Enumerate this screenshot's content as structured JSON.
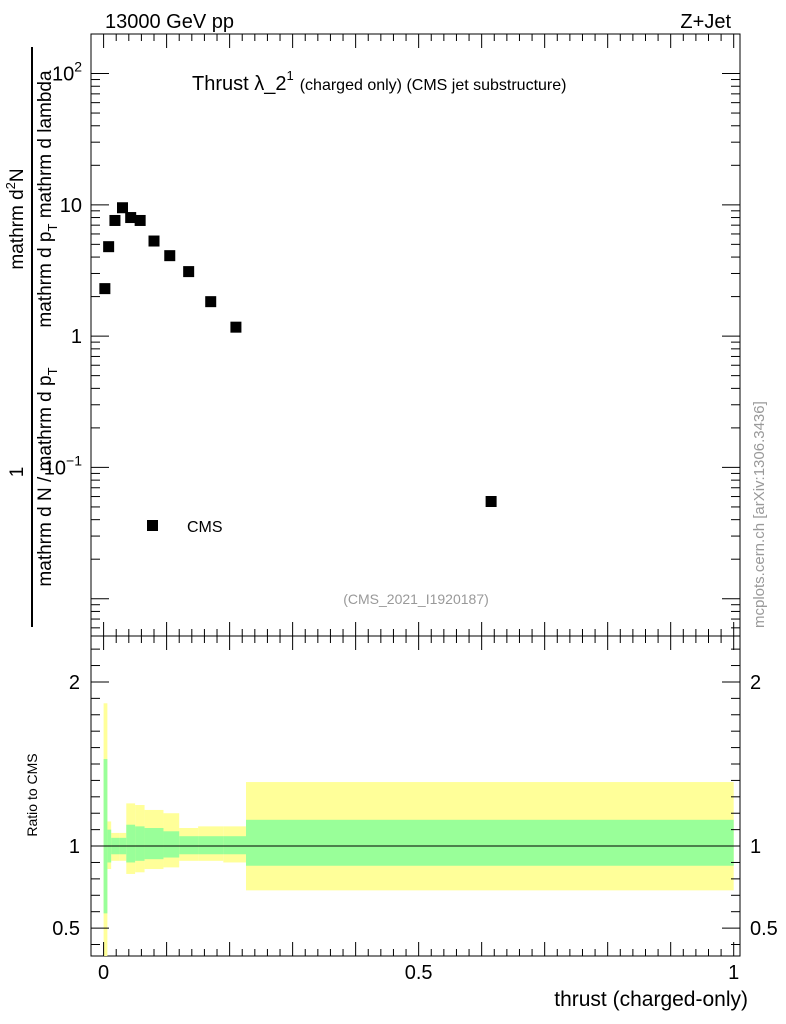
{
  "header": {
    "left": "13000 GeV pp",
    "right": "Z+Jet"
  },
  "title": {
    "main": "Thrust λ_2",
    "superscript": "1",
    "detail": "(charged only) (CMS jet substructure)"
  },
  "ylabel": {
    "numerator_main": "mathrm d",
    "numerator_sup": "2",
    "numerator_tail": "N",
    "denominator_a": "mathrm d p",
    "denominator_sub_a": "T",
    "denominator_b": " mathrm d lambda",
    "prefactor_num": "1",
    "prefactor_den_a": "mathrm d N / mathrm d p",
    "prefactor_den_sub": "T"
  },
  "side_text": "mcplots.cern.ch [arXiv:1306.3436]",
  "analysis_id": "(CMS_2021_I1920187)",
  "legend": {
    "label": "CMS"
  },
  "ratio": {
    "ylabel": "Ratio to CMS"
  },
  "xlabel": "thrust (charged-only)",
  "colors": {
    "data": "#000000",
    "band_outer": "#ffff99",
    "band_inner": "#99ff99",
    "watermark": "#999999"
  },
  "chart_data": [
    {
      "type": "scatter",
      "title": "Thrust λ_2^1 (charged only) (CMS jet substructure)",
      "xlabel": "thrust (charged-only)",
      "ylabel": "1 / (mathrm d N / mathrm d p_T) · mathrm d^2N / (mathrm d p_T mathrm d lambda)",
      "yscale": "log",
      "xlim": [
        -0.02,
        1.01
      ],
      "ylim": [
        0.0052,
        200
      ],
      "x_ticks": [
        "0",
        "0.5",
        "1"
      ],
      "y_ticks": [
        "10^-1",
        "1",
        "10",
        "10^2"
      ],
      "legend_position": "bottom-left",
      "series": [
        {
          "name": "CMS",
          "x": [
            0.002,
            0.008,
            0.018,
            0.03,
            0.043,
            0.058,
            0.08,
            0.105,
            0.135,
            0.17,
            0.21,
            0.615
          ],
          "y": [
            2.3,
            4.8,
            7.6,
            9.5,
            8.0,
            7.6,
            5.3,
            4.1,
            3.1,
            1.83,
            1.17,
            0.055
          ]
        }
      ]
    },
    {
      "type": "area",
      "ylabel": "Ratio to CMS",
      "xlabel": "thrust (charged-only)",
      "xlim": [
        -0.02,
        1.01
      ],
      "ylim": [
        0.33,
        2.28
      ],
      "y_ticks": [
        "0.5",
        "1",
        "2"
      ],
      "reference_line": 1,
      "bins": [
        {
          "x0": 0.0,
          "x1": 0.006,
          "inner": [
            0.59,
            1.53
          ],
          "outer": [
            0.33,
            1.87
          ]
        },
        {
          "x0": 0.006,
          "x1": 0.012,
          "inner": [
            0.9,
            1.1
          ],
          "outer": [
            0.86,
            1.15
          ]
        },
        {
          "x0": 0.012,
          "x1": 0.025,
          "inner": [
            0.95,
            1.05
          ],
          "outer": [
            0.91,
            1.08
          ]
        },
        {
          "x0": 0.025,
          "x1": 0.036,
          "inner": [
            0.95,
            1.05
          ],
          "outer": [
            0.91,
            1.08
          ]
        },
        {
          "x0": 0.036,
          "x1": 0.05,
          "inner": [
            0.9,
            1.13
          ],
          "outer": [
            0.83,
            1.26
          ]
        },
        {
          "x0": 0.05,
          "x1": 0.065,
          "inner": [
            0.91,
            1.12
          ],
          "outer": [
            0.84,
            1.25
          ]
        },
        {
          "x0": 0.065,
          "x1": 0.095,
          "inner": [
            0.92,
            1.11
          ],
          "outer": [
            0.86,
            1.22
          ]
        },
        {
          "x0": 0.095,
          "x1": 0.12,
          "inner": [
            0.93,
            1.09
          ],
          "outer": [
            0.87,
            1.2
          ]
        },
        {
          "x0": 0.12,
          "x1": 0.15,
          "inner": [
            0.95,
            1.06
          ],
          "outer": [
            0.91,
            1.11
          ]
        },
        {
          "x0": 0.15,
          "x1": 0.19,
          "inner": [
            0.95,
            1.06
          ],
          "outer": [
            0.91,
            1.12
          ]
        },
        {
          "x0": 0.19,
          "x1": 0.226,
          "inner": [
            0.95,
            1.06
          ],
          "outer": [
            0.9,
            1.12
          ]
        },
        {
          "x0": 0.226,
          "x1": 1.0,
          "inner": [
            0.88,
            1.16
          ],
          "outer": [
            0.73,
            1.39
          ]
        }
      ]
    }
  ]
}
